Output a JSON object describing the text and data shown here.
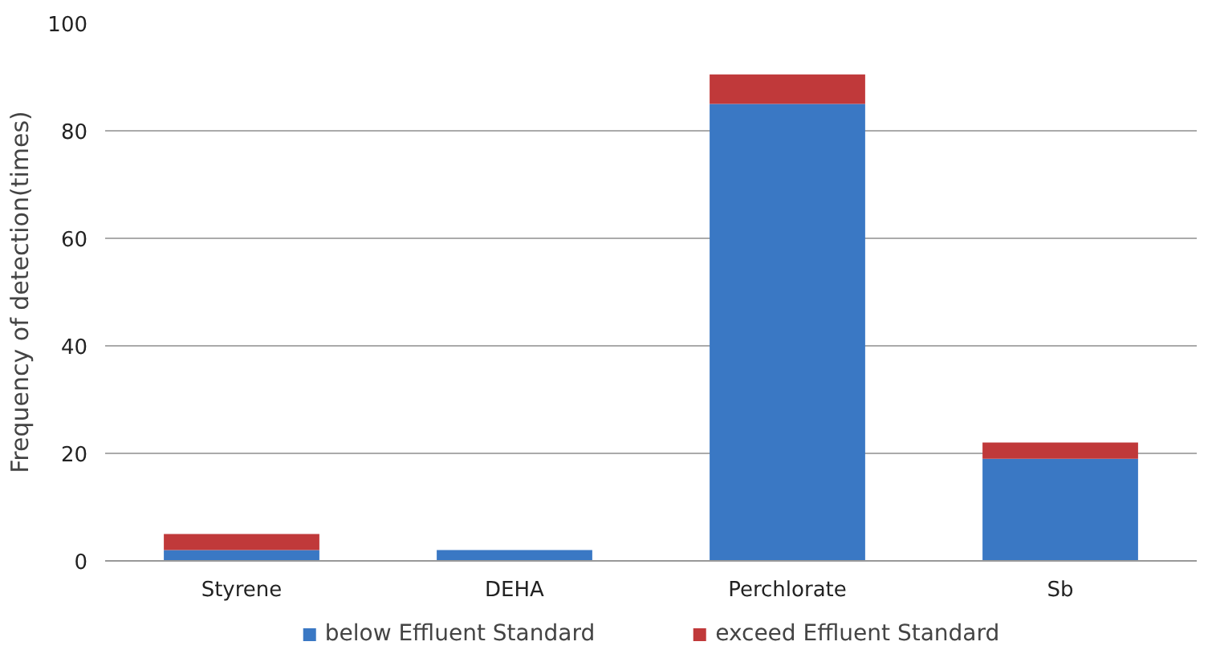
{
  "chart_data": {
    "type": "bar",
    "stacked": true,
    "ylabel": "Frequency of detection(times)",
    "categories": [
      "Styrene",
      "DEHA",
      "Perchlorate",
      "Sb"
    ],
    "series": [
      {
        "name": "below Effluent Standard",
        "color": "#3a78c4",
        "values": [
          2,
          2,
          85,
          19
        ]
      },
      {
        "name": "exceed Effluent Standard",
        "color": "#c0393a",
        "values": [
          3,
          0,
          5.5,
          3
        ]
      }
    ],
    "ylim": [
      0,
      100
    ],
    "yticks": [
      0,
      20,
      40,
      60,
      80,
      100
    ],
    "grid": "y",
    "legend": "bottom"
  }
}
